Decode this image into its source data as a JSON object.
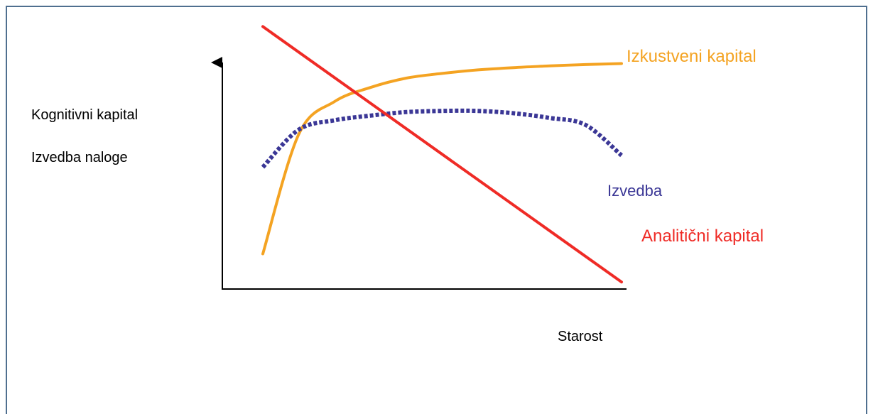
{
  "colors": {
    "frame": "#4f6f8f",
    "axis": "#000000",
    "analytical": "#ef2b26",
    "experiential": "#f4a322",
    "performance": "#3b3796",
    "text": "#000000"
  },
  "labels": {
    "ylabel_line1": "Kognitivni kapital",
    "ylabel_line2": "Izvedba naloge",
    "xlabel": "Starost"
  },
  "chart_data": {
    "type": "line",
    "title": "",
    "xlabel": "Starost",
    "ylabel": "Kognitivni kapital / Izvedba naloge",
    "axes_numeric_ticks": false,
    "grid": false,
    "x": [
      0,
      0.1,
      0.2,
      0.3,
      0.4,
      0.5,
      0.6,
      0.7,
      0.8,
      0.9,
      1.0
    ],
    "ylim": [
      0,
      1
    ],
    "series": [
      {
        "name": "Izkustveni kapital",
        "color_key": "experiential",
        "style": "solid",
        "values": [
          0.15,
          0.66,
          0.8,
          0.86,
          0.9,
          0.92,
          0.935,
          0.945,
          0.952,
          0.958,
          0.962
        ]
      },
      {
        "name": "Izvedba",
        "color_key": "performance",
        "style": "dotted",
        "values": [
          0.52,
          0.68,
          0.72,
          0.74,
          0.755,
          0.76,
          0.76,
          0.75,
          0.73,
          0.7,
          0.57
        ]
      },
      {
        "name": "Analitični kapital",
        "color_key": "analytical",
        "style": "solid",
        "values": [
          1.12,
          1.0,
          0.88,
          0.77,
          0.65,
          0.53,
          0.42,
          0.31,
          0.2,
          0.1,
          0.03
        ]
      }
    ]
  }
}
